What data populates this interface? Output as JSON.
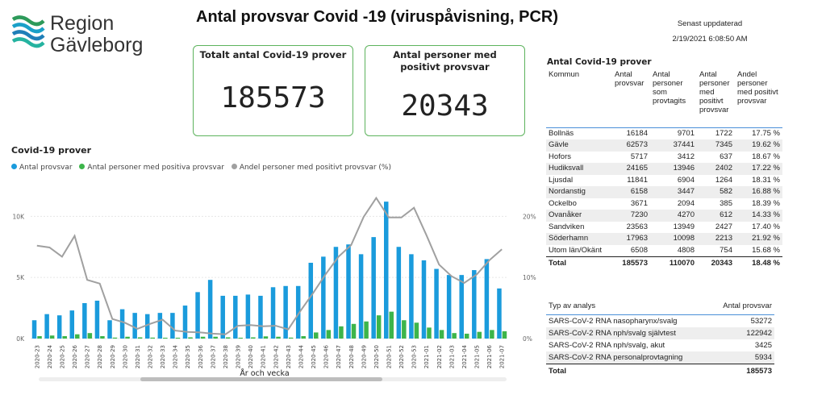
{
  "logo": {
    "line1": "Region",
    "line2": "Gävleborg"
  },
  "title": "Antal provsvar Covid -19 (viruspåvisning, PCR)",
  "updated": {
    "label": "Senast uppdaterad",
    "value": "2/19/2021 6:08:50 AM"
  },
  "cards": [
    {
      "label": "Totalt antal Covid-19 prover",
      "value": "185573"
    },
    {
      "label": "Antal personer med positivt provsvar",
      "value": "20343"
    }
  ],
  "chart": {
    "title": "Covid-19 prover",
    "legend": [
      "Antal provsvar",
      "Antal personer med positiva provsvar",
      "Andel personer med positivt provsvar  (%)"
    ],
    "xlabel": "År och vecka"
  },
  "colors": {
    "blue": "#1a9bdc",
    "green": "#3db54a",
    "gray": "#a0a0a0",
    "accent": "#5db35d"
  },
  "chart_data": {
    "type": "bar",
    "title": "Covid-19 prover",
    "xlabel": "År och vecka",
    "ylabel": "",
    "categories": [
      "2020-23",
      "2020-24",
      "2020-25",
      "2020-26",
      "2020-27",
      "2020-28",
      "2020-29",
      "2020-30",
      "2020-31",
      "2020-32",
      "2020-33",
      "2020-34",
      "2020-35",
      "2020-36",
      "2020-37",
      "2020-38",
      "2020-39",
      "2020-40",
      "2020-41",
      "2020-42",
      "2020-43",
      "2020-44",
      "2020-45",
      "2020-46",
      "2020-47",
      "2020-48",
      "2020-49",
      "2020-50",
      "2020-51",
      "2020-52",
      "2020-53",
      "2021-01",
      "2021-02",
      "2021-03",
      "2021-04",
      "2021-05",
      "2021-06",
      "2021-07"
    ],
    "series": [
      {
        "name": "Antal provsvar",
        "axis": "left",
        "values": [
          1500,
          2000,
          1900,
          2300,
          2900,
          3100,
          1500,
          2400,
          2100,
          2000,
          2100,
          2100,
          2700,
          3800,
          4800,
          3500,
          3500,
          3600,
          3500,
          4200,
          4300,
          4300,
          6200,
          6700,
          7500,
          7700,
          6900,
          8300,
          11200,
          7500,
          6900,
          6400,
          5700,
          5200,
          5200,
          5600,
          6500,
          4100
        ]
      },
      {
        "name": "Antal personer med positiva provsvar",
        "axis": "left",
        "values": [
          200,
          250,
          200,
          350,
          450,
          200,
          80,
          150,
          100,
          80,
          70,
          70,
          100,
          150,
          150,
          100,
          70,
          100,
          180,
          150,
          80,
          200,
          500,
          700,
          1000,
          1200,
          1400,
          1900,
          2200,
          1500,
          1300,
          900,
          700,
          450,
          400,
          550,
          700,
          600
        ]
      },
      {
        "name": "Andel personer med positivt provsvar  (%)",
        "axis": "right",
        "values": [
          15.2,
          14.9,
          13.4,
          16.8,
          9.6,
          9.0,
          3.2,
          2.6,
          1.6,
          2.4,
          3.1,
          1.3,
          1.1,
          1.0,
          0.8,
          0.7,
          2.1,
          2.2,
          2.0,
          2.1,
          1.5,
          4.6,
          7.5,
          10.6,
          13.4,
          15.3,
          19.9,
          23.0,
          19.8,
          19.8,
          21.4,
          16.9,
          12.1,
          10.2,
          9.1,
          10.5,
          12.8,
          14.6
        ]
      }
    ],
    "ylim": [
      0,
      12000
    ],
    "yticks": [
      "0K",
      "5K",
      "10K"
    ],
    "y2lim": [
      0,
      24
    ],
    "y2ticks": [
      "0%",
      "10%",
      "20%"
    ]
  },
  "kommun_table": {
    "title": "Antal Covid-19 prover",
    "headers": [
      "Kommun",
      "Antal provsvar",
      "Antal personer som provtagits",
      "Antal personer med positivt provsvar",
      "Andel personer med positivt provsvar"
    ],
    "rows": [
      [
        "Bollnäs",
        "16184",
        "9701",
        "1722",
        "17.75 %"
      ],
      [
        "Gävle",
        "62573",
        "37441",
        "7345",
        "19.62 %"
      ],
      [
        "Hofors",
        "5717",
        "3412",
        "637",
        "18.67 %"
      ],
      [
        "Hudiksvall",
        "24165",
        "13946",
        "2402",
        "17.22 %"
      ],
      [
        "Ljusdal",
        "11841",
        "6904",
        "1264",
        "18.31 %"
      ],
      [
        "Nordanstig",
        "6158",
        "3447",
        "582",
        "16.88 %"
      ],
      [
        "Ockelbo",
        "3671",
        "2094",
        "385",
        "18.39 %"
      ],
      [
        "Ovanåker",
        "7230",
        "4270",
        "612",
        "14.33 %"
      ],
      [
        "Sandviken",
        "23563",
        "13949",
        "2427",
        "17.40 %"
      ],
      [
        "Söderhamn",
        "17963",
        "10098",
        "2213",
        "21.92 %"
      ],
      [
        "Utom län/Okänt",
        "6508",
        "4808",
        "754",
        "15.68 %"
      ]
    ],
    "total": [
      "Total",
      "185573",
      "110070",
      "20343",
      "18.48 %"
    ]
  },
  "typ_table": {
    "headers": [
      "Typ av analys",
      "Antal provsvar"
    ],
    "rows": [
      [
        "SARS-CoV-2 RNA nasopharynx/svalg",
        "53272"
      ],
      [
        "SARS-CoV-2 RNA nph/svalg självtest",
        "122942"
      ],
      [
        "SARS-CoV-2 RNA nph/svalg, akut",
        "3425"
      ],
      [
        "SARS-CoV-2 RNA personalprovtagning",
        "5934"
      ]
    ],
    "total": [
      "Total",
      "185573"
    ]
  }
}
